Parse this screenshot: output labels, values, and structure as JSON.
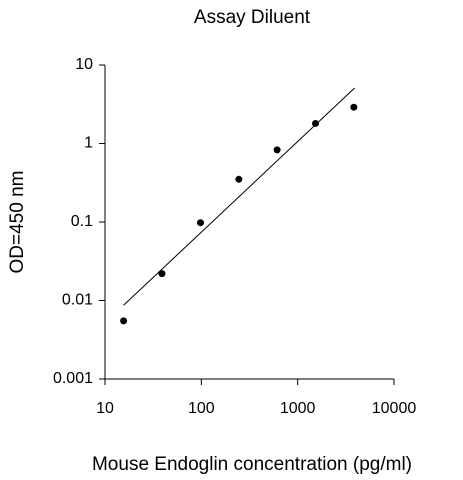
{
  "chart_data": {
    "type": "scatter",
    "title": "Assay Diluent",
    "x_label": "Mouse Endoglin concentration (pg/ml)",
    "y_label": "OD=450 nm",
    "x": [
      15.6,
      39,
      98,
      245,
      612,
      1531,
      3828
    ],
    "values": [
      0.0055,
      0.022,
      0.098,
      0.35,
      0.83,
      1.8,
      2.9
    ],
    "color": "#000000",
    "fit_line": {
      "x": [
        15.6,
        3900
      ],
      "values": [
        0.0087,
        5.1
      ],
      "color": "#000000"
    },
    "xscale": "log",
    "yscale": "log",
    "xlim": [
      10,
      10000
    ],
    "ylim": [
      0.001,
      10
    ],
    "xticks": [
      10,
      100,
      1000,
      10000
    ],
    "yticks": [
      0.001,
      0.01,
      0.1,
      1,
      10
    ],
    "grid": false
  }
}
